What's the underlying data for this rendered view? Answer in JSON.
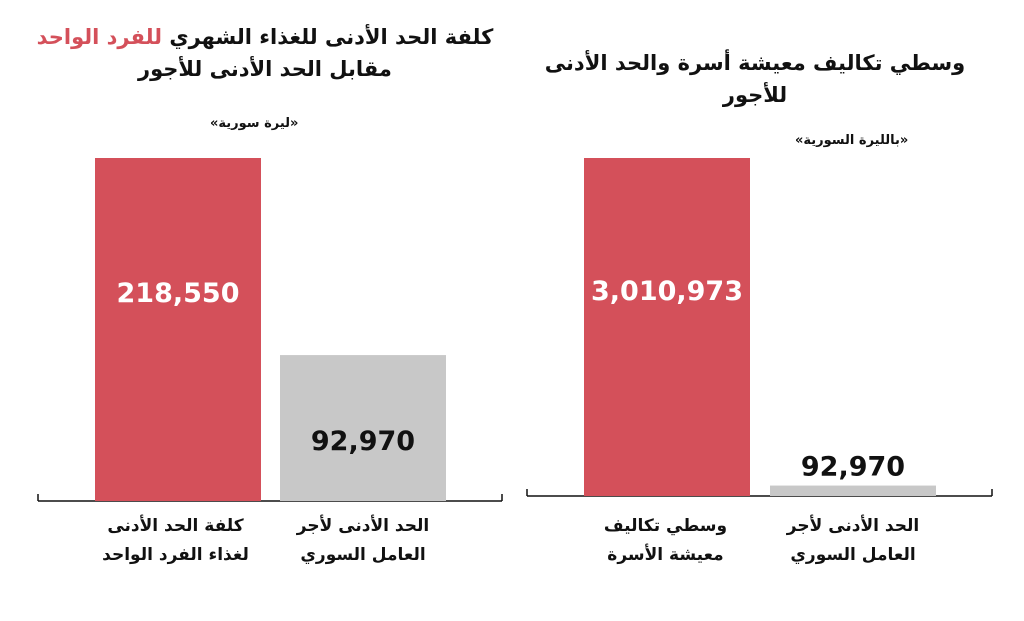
{
  "colors": {
    "highlight": "#d4505a",
    "baseline": "#c8c8c8",
    "axis": "#111111"
  },
  "chart_data": [
    {
      "type": "bar",
      "title_parts": [
        "كلفة الحد الأدنى للغذاء الشهري ",
        "للفرد الواحد",
        " مقابل الحد الأدنى للأجور"
      ],
      "unit": "«ليرة سورية»",
      "categories": [
        "كلفة الحد الأدنى لغذاء الفرد الواحد",
        "الحد الأدنى لأجر العامل السوري"
      ],
      "values": [
        218550,
        92970
      ],
      "value_labels": [
        "218,550",
        "92,970"
      ],
      "bar_colors": [
        "#d4505a",
        "#c8c8c8"
      ],
      "ylim": [
        0,
        218550
      ]
    },
    {
      "type": "bar",
      "title_parts": [
        "وسطي تكاليف معيشة أسرة والحد الأدنى للأجور"
      ],
      "unit": "«بالليرة السورية»",
      "categories": [
        "وسطي تكاليف معيشة الأسرة",
        "الحد الأدنى لأجر العامل السوري"
      ],
      "values": [
        3010973,
        92970
      ],
      "value_labels": [
        "3,010,973",
        "92,970"
      ],
      "bar_colors": [
        "#d4505a",
        "#c8c8c8"
      ],
      "ylim": [
        0,
        3010973
      ]
    }
  ]
}
